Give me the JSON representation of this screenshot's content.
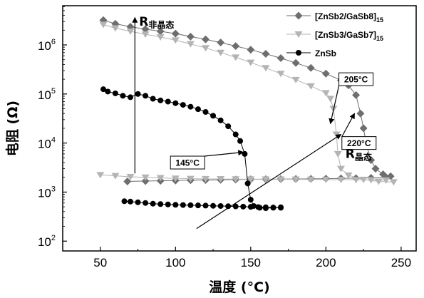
{
  "chart_data": {
    "type": "scatter",
    "xlabel": "温度 (°C)",
    "ylabel": "电阻 (Ω)",
    "xlim": [
      25,
      260
    ],
    "ylim_log10": [
      1.8,
      6.8
    ],
    "y_scale": "log",
    "grid": false,
    "x_ticks": [
      {
        "value": 50,
        "label": "50"
      },
      {
        "value": 100,
        "label": "100"
      },
      {
        "value": 150,
        "label": "150"
      },
      {
        "value": 200,
        "label": "200"
      },
      {
        "value": 250,
        "label": "250"
      }
    ],
    "y_ticks": [
      {
        "exp": 2,
        "base": "10",
        "power": "2"
      },
      {
        "exp": 3,
        "base": "10",
        "power": "3"
      },
      {
        "exp": 4,
        "base": "10",
        "power": "4"
      },
      {
        "exp": 5,
        "base": "10",
        "power": "5"
      },
      {
        "exp": 6,
        "base": "10",
        "power": "6"
      }
    ],
    "legend_position": "top-right",
    "series": [
      {
        "name": "[ZnSb2/GaSb8]",
        "name_sub": "15",
        "marker": "diamond",
        "color": "#6e6e6e",
        "heating": [
          [
            52,
            3200000
          ],
          [
            60,
            2700000
          ],
          [
            70,
            2350000
          ],
          [
            80,
            2100000
          ],
          [
            90,
            1900000
          ],
          [
            100,
            1700000
          ],
          [
            110,
            1480000
          ],
          [
            120,
            1300000
          ],
          [
            130,
            1120000
          ],
          [
            140,
            950000
          ],
          [
            150,
            800000
          ],
          [
            160,
            660000
          ],
          [
            170,
            540000
          ],
          [
            180,
            430000
          ],
          [
            190,
            340000
          ],
          [
            200,
            260000
          ],
          [
            210,
            190000
          ],
          [
            215,
            150000
          ],
          [
            220,
            95000
          ],
          [
            223,
            40000
          ],
          [
            225,
            20000
          ],
          [
            227,
            9000
          ],
          [
            230,
            4500
          ],
          [
            233,
            3000
          ],
          [
            238,
            2300
          ],
          [
            243,
            2100
          ]
        ],
        "cooling": [
          [
            68,
            1650
          ],
          [
            80,
            1680
          ],
          [
            90,
            1700
          ],
          [
            100,
            1720
          ],
          [
            110,
            1750
          ],
          [
            120,
            1760
          ],
          [
            130,
            1780
          ],
          [
            140,
            1800
          ],
          [
            150,
            1820
          ],
          [
            160,
            1830
          ],
          [
            170,
            1840
          ],
          [
            180,
            1850
          ],
          [
            190,
            1860
          ],
          [
            200,
            1880
          ],
          [
            210,
            1900
          ],
          [
            220,
            1920
          ],
          [
            230,
            1950
          ],
          [
            240,
            2000
          ]
        ]
      },
      {
        "name": "[ZnSb3/GaSb7]",
        "name_sub": "15",
        "marker": "triangle-down",
        "color": "#b4b4b4",
        "heating": [
          [
            52,
            2600000
          ],
          [
            60,
            2200000
          ],
          [
            70,
            1900000
          ],
          [
            80,
            1650000
          ],
          [
            90,
            1450000
          ],
          [
            100,
            1250000
          ],
          [
            110,
            1050000
          ],
          [
            120,
            870000
          ],
          [
            130,
            700000
          ],
          [
            140,
            560000
          ],
          [
            150,
            440000
          ],
          [
            160,
            340000
          ],
          [
            170,
            260000
          ],
          [
            180,
            195000
          ],
          [
            190,
            145000
          ],
          [
            200,
            105000
          ],
          [
            203,
            80000
          ],
          [
            205,
            50000
          ],
          [
            207,
            15000
          ],
          [
            208,
            6000
          ],
          [
            210,
            3000
          ],
          [
            215,
            2200
          ],
          [
            225,
            1800
          ],
          [
            235,
            1650
          ],
          [
            245,
            1600
          ]
        ],
        "cooling": [
          [
            50,
            2250
          ],
          [
            60,
            2150
          ],
          [
            70,
            2050
          ],
          [
            80,
            2000
          ],
          [
            90,
            1950
          ],
          [
            100,
            1900
          ],
          [
            110,
            1880
          ],
          [
            120,
            1860
          ],
          [
            130,
            1850
          ],
          [
            140,
            1840
          ],
          [
            150,
            1830
          ],
          [
            160,
            1830
          ],
          [
            170,
            1820
          ],
          [
            180,
            1820
          ],
          [
            190,
            1810
          ],
          [
            200,
            1800
          ],
          [
            210,
            1790
          ],
          [
            220,
            1780
          ],
          [
            230,
            1760
          ],
          [
            240,
            1750
          ]
        ]
      },
      {
        "name": "ZnSb",
        "name_sub": "",
        "marker": "circle",
        "color": "#000000",
        "heating": [
          [
            52,
            125000
          ],
          [
            55,
            112000
          ],
          [
            60,
            103000
          ],
          [
            65,
            92000
          ],
          [
            70,
            86000
          ],
          [
            75,
            100000
          ],
          [
            80,
            92000
          ],
          [
            85,
            80000
          ],
          [
            90,
            74000
          ],
          [
            95,
            70000
          ],
          [
            100,
            65000
          ],
          [
            105,
            60000
          ],
          [
            110,
            55000
          ],
          [
            115,
            49000
          ],
          [
            120,
            43000
          ],
          [
            125,
            36000
          ],
          [
            130,
            29000
          ],
          [
            135,
            22000
          ],
          [
            140,
            15000
          ],
          [
            143,
            11000
          ],
          [
            146,
            6000
          ],
          [
            148,
            1500
          ],
          [
            150,
            700
          ],
          [
            152,
            520
          ],
          [
            156,
            480
          ],
          [
            160,
            470
          ],
          [
            165,
            480
          ],
          [
            170,
            490
          ]
        ],
        "cooling": [
          [
            66,
            650
          ],
          [
            70,
            640
          ],
          [
            75,
            620
          ],
          [
            80,
            600
          ],
          [
            85,
            580
          ],
          [
            90,
            570
          ],
          [
            95,
            560
          ],
          [
            100,
            550
          ],
          [
            105,
            545
          ],
          [
            110,
            540
          ],
          [
            115,
            535
          ],
          [
            120,
            530
          ],
          [
            125,
            525
          ],
          [
            130,
            520
          ],
          [
            135,
            515
          ],
          [
            140,
            510
          ],
          [
            145,
            505
          ],
          [
            150,
            500
          ],
          [
            155,
            495
          ],
          [
            160,
            490
          ],
          [
            165,
            485
          ],
          [
            170,
            480
          ]
        ]
      }
    ],
    "annotations": [
      {
        "label": "145°C",
        "box": [
          108,
          4000
        ],
        "arrow_to": [
          145,
          6500
        ]
      },
      {
        "label": "205°C",
        "box": [
          220,
          200000
        ],
        "arrow_to": [
          203,
          25000
        ]
      },
      {
        "label": "220°C",
        "box": [
          222,
          10000
        ],
        "arrow_to": [
          219,
          40000
        ]
      }
    ],
    "r_labels": {
      "amorphous": {
        "main": "R",
        "sub": "非晶态"
      },
      "crystalline": {
        "main": "R",
        "sub": "晶态"
      }
    }
  }
}
